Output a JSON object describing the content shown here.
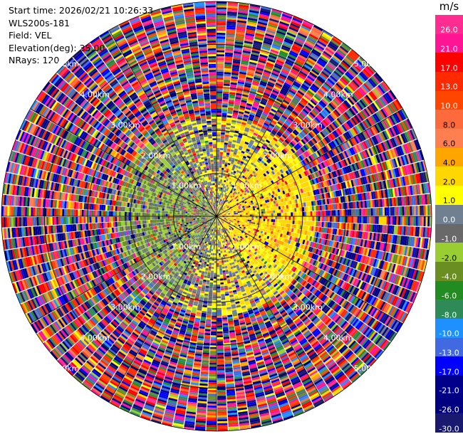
{
  "header": {
    "start_time": "Start time: 2026/02/21 10:26:33",
    "instrument": "WLS200s-181",
    "field": "Field: VEL",
    "elevation": "Elevation(deg): 35.00",
    "nrays": "NRays: 120"
  },
  "range_rings": [
    {
      "label": "1.00km",
      "value_km": 1.0
    },
    {
      "label": "2.00km",
      "value_km": 2.0
    },
    {
      "label": "3.00km",
      "value_km": 3.0
    },
    {
      "label": "4.00km",
      "value_km": 4.0
    },
    {
      "label": "5.00km",
      "value_km": 5.0
    }
  ],
  "colorbar": {
    "unit": "m/s",
    "ticks": [
      "26.0",
      "21.0",
      "17.0",
      "13.0",
      "10.0",
      "8.0",
      "6.0",
      "4.0",
      "2.0",
      "1.0",
      "0.0",
      "-1.0",
      "-2.0",
      "-4.0",
      "-6.0",
      "-8.0",
      "-10.0",
      "-13.0",
      "-17.0",
      "-21.0",
      "-26.0",
      "-30.0"
    ],
    "colors": [
      "#ff2d8f",
      "#ff1493",
      "#ff0000",
      "#ff2a00",
      "#ff4500",
      "#ff6a3d",
      "#ff7f50",
      "#ffa500",
      "#ffd700",
      "#ffff00",
      "#708090",
      "#696969",
      "#9acd32",
      "#6b8e23",
      "#228b22",
      "#2e8b57",
      "#1e90ff",
      "#4169e1",
      "#0000ff",
      "#00008b",
      "#000080",
      "#191970"
    ]
  },
  "chart_data": {
    "type": "heatmap",
    "title": "",
    "field": "VEL",
    "elevation_deg": 35.0,
    "nrays": 120,
    "max_range_km": 5.0,
    "units": "m/s",
    "vmin": -30.0,
    "vmax": 30.0,
    "pattern": "near-range (<~2km) velocities mostly in -2.0 to 4.0 m/s (olive/green west, yellow/orange east); beyond ~2.5km noisy values spanning full range"
  }
}
